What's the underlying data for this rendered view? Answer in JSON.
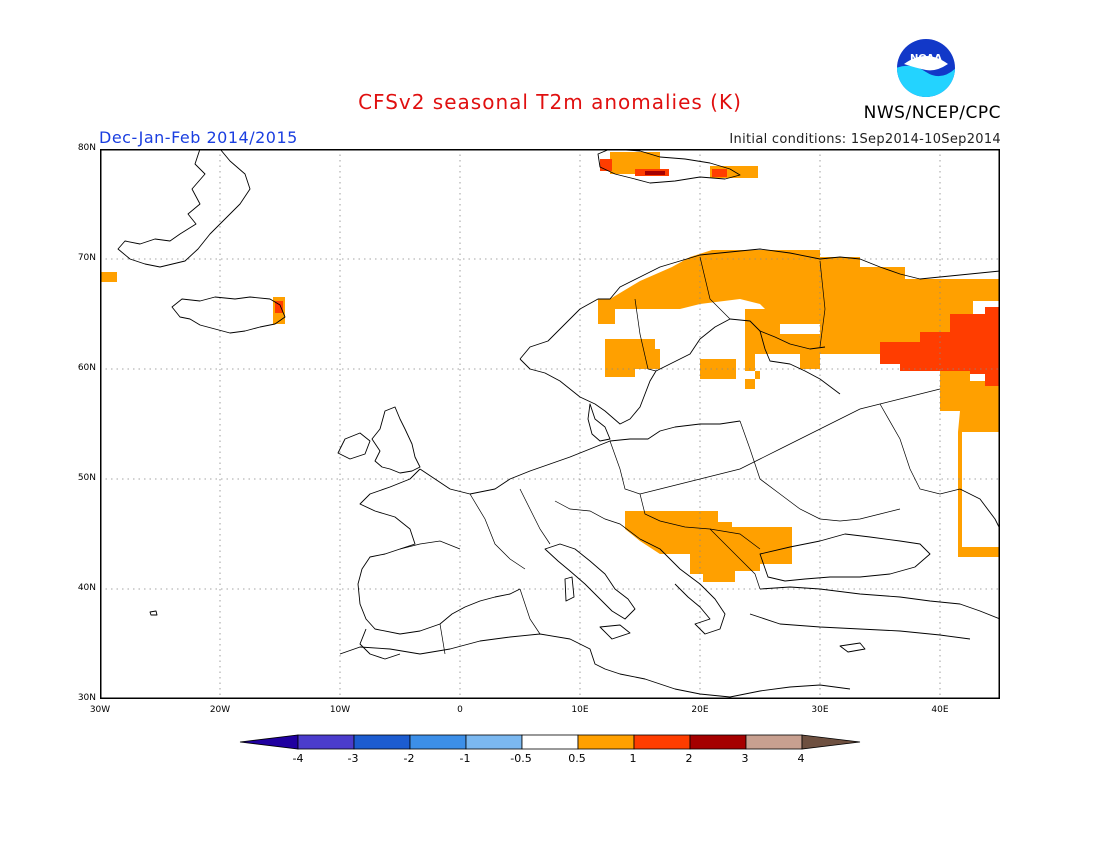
{
  "title": "CFSv2 seasonal T2m anomalies (K)",
  "subtitle_left": "Dec-Jan-Feb 2014/2015",
  "subtitle_right": "Initial conditions: 1Sep2014-10Sep2014",
  "agency": "NWS/NCEP/CPC",
  "logo_text": "NOAA",
  "colors": {
    "title": "#e01010",
    "subtitle_left": "#1a3ee0",
    "anom_0_5_1": "#ffa000",
    "anom_1_2": "#ff3d00",
    "anom_2_3": "#a50000",
    "logo_blue": "#1238c8",
    "logo_cyan": "#23d3ff"
  },
  "map": {
    "lat_labels": [
      "80N",
      "70N",
      "60N",
      "50N",
      "40N",
      "30N"
    ],
    "lon_labels": [
      "30W",
      "20W",
      "10W",
      "0",
      "10E",
      "20E",
      "30E",
      "40E"
    ]
  },
  "colorbar": {
    "colors": [
      "#2000a0",
      "#4b3ccc",
      "#1c5cd0",
      "#3c8fe8",
      "#7bb8f0",
      "#ffffff",
      "#ffa000",
      "#ff3d00",
      "#a50000",
      "#c8a090",
      "#6e5040"
    ],
    "labels": [
      "-4",
      "-3",
      "-2",
      "-1",
      "-0.5",
      "0.5",
      "1",
      "2",
      "3",
      "4"
    ]
  }
}
